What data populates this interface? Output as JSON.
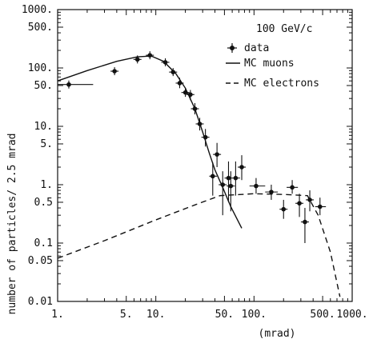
{
  "chart_data": {
    "type": "scatter",
    "xscale": "log",
    "yscale": "log",
    "xlim": [
      1,
      1000
    ],
    "ylim": [
      0.01,
      1000
    ],
    "annotation": "100 GeV/c",
    "xlabel": "(mrad)",
    "ylabel": "number of particles/ 2.5 mrad",
    "x_ticks": [
      {
        "value": 1,
        "label": "1."
      },
      {
        "value": 5,
        "label": "5."
      },
      {
        "value": 10,
        "label": "10."
      },
      {
        "value": 50,
        "label": "50."
      },
      {
        "value": 100,
        "label": "100."
      },
      {
        "value": 500,
        "label": "500."
      },
      {
        "value": 1000,
        "label": "1000."
      }
    ],
    "y_ticks": [
      {
        "value": 1000,
        "label": "1000."
      },
      {
        "value": 500,
        "label": "500."
      },
      {
        "value": 100,
        "label": "100."
      },
      {
        "value": 50,
        "label": "50."
      },
      {
        "value": 10,
        "label": "10."
      },
      {
        "value": 5,
        "label": "5."
      },
      {
        "value": 1,
        "label": "1."
      },
      {
        "value": 0.5,
        "label": "0.5"
      },
      {
        "value": 0.1,
        "label": "0.1"
      },
      {
        "value": 0.05,
        "label": "0.05"
      },
      {
        "value": 0.01,
        "label": "0.01"
      }
    ],
    "legend": [
      {
        "name": "data",
        "style": "points"
      },
      {
        "name": "MC muons",
        "style": "solid"
      },
      {
        "name": "MC electrons",
        "style": "dashed"
      }
    ],
    "series": [
      {
        "name": "data",
        "points": [
          {
            "x": 1.3,
            "y": 52,
            "xerr": [
              1.0,
              2.3
            ]
          },
          {
            "x": 3.8,
            "y": 88
          },
          {
            "x": 6.5,
            "y": 140
          },
          {
            "x": 8.7,
            "y": 165
          },
          {
            "x": 12.5,
            "y": 125
          },
          {
            "x": 15.0,
            "y": 85
          },
          {
            "x": 17.5,
            "y": 55,
            "yerr": [
              45,
              68
            ]
          },
          {
            "x": 20.0,
            "y": 38,
            "yerr": [
              32,
              46
            ]
          },
          {
            "x": 22.5,
            "y": 35,
            "yerr": [
              28,
              42
            ]
          },
          {
            "x": 25.0,
            "y": 20,
            "yerr": [
              16,
              25
            ]
          },
          {
            "x": 28.0,
            "y": 11,
            "yerr": [
              8.5,
              14
            ]
          },
          {
            "x": 32.0,
            "y": 6.5,
            "yerr": [
              4.5,
              9
            ]
          },
          {
            "x": 38.0,
            "y": 1.4,
            "xerr": [
              35,
              42
            ],
            "yerr": [
              0.65,
              2.4
            ]
          },
          {
            "x": 42.0,
            "y": 3.3,
            "yerr": [
              2.0,
              5.2
            ]
          },
          {
            "x": 48.0,
            "y": 1.0,
            "yerr": [
              0.3,
              1.7
            ]
          },
          {
            "x": 55.0,
            "y": 1.3,
            "yerr": [
              0.5,
              2.5
            ]
          },
          {
            "x": 58.0,
            "y": 0.95,
            "yerr": [
              0.35,
              1.7
            ]
          },
          {
            "x": 65.0,
            "y": 1.3,
            "xerr": [
              60,
              72
            ],
            "yerr": [
              0.65,
              2.5
            ]
          },
          {
            "x": 75.0,
            "y": 2.0,
            "yerr": [
              1.2,
              3.2
            ]
          },
          {
            "x": 105.0,
            "y": 0.95,
            "xerr": [
              90,
              130
            ],
            "yerr": [
              0.7,
              1.3
            ]
          },
          {
            "x": 150.0,
            "y": 0.75,
            "xerr": [
              130,
              175
            ],
            "yerr": [
              0.55,
              1.0
            ]
          },
          {
            "x": 200.0,
            "y": 0.38,
            "yerr": [
              0.26,
              0.55
            ]
          },
          {
            "x": 245.0,
            "y": 0.9,
            "xerr": [
              215,
              280
            ],
            "yerr": [
              0.7,
              1.2
            ]
          },
          {
            "x": 290.0,
            "y": 0.48,
            "yerr": [
              0.28,
              0.7
            ]
          },
          {
            "x": 330.0,
            "y": 0.23,
            "yerr": [
              0.1,
              0.4
            ]
          },
          {
            "x": 370.0,
            "y": 0.55,
            "yerr": [
              0.35,
              0.8
            ]
          },
          {
            "x": 470.0,
            "y": 0.42,
            "xerr": [
              420,
              540
            ],
            "yerr": [
              0.3,
              0.6
            ]
          }
        ]
      },
      {
        "name": "MC muons",
        "points": [
          {
            "x": 1.0,
            "y": 60
          },
          {
            "x": 2.0,
            "y": 90
          },
          {
            "x": 4.0,
            "y": 130
          },
          {
            "x": 6.5,
            "y": 155
          },
          {
            "x": 9.0,
            "y": 160
          },
          {
            "x": 12.0,
            "y": 130
          },
          {
            "x": 16.0,
            "y": 80
          },
          {
            "x": 20.0,
            "y": 45
          },
          {
            "x": 25.0,
            "y": 20
          },
          {
            "x": 30.0,
            "y": 8
          },
          {
            "x": 35.0,
            "y": 3.5
          },
          {
            "x": 40.0,
            "y": 1.8
          },
          {
            "x": 48.0,
            "y": 0.9
          },
          {
            "x": 58.0,
            "y": 0.42
          },
          {
            "x": 75.0,
            "y": 0.18
          }
        ]
      },
      {
        "name": "MC electrons",
        "points": [
          {
            "x": 1.0,
            "y": 0.055
          },
          {
            "x": 3.0,
            "y": 0.11
          },
          {
            "x": 10.0,
            "y": 0.25
          },
          {
            "x": 25.0,
            "y": 0.45
          },
          {
            "x": 45.0,
            "y": 0.65
          },
          {
            "x": 100.0,
            "y": 0.7
          },
          {
            "x": 200.0,
            "y": 0.68
          },
          {
            "x": 350.0,
            "y": 0.65
          },
          {
            "x": 450.0,
            "y": 0.3
          },
          {
            "x": 600.0,
            "y": 0.07
          },
          {
            "x": 750.0,
            "y": 0.012
          }
        ]
      }
    ]
  }
}
